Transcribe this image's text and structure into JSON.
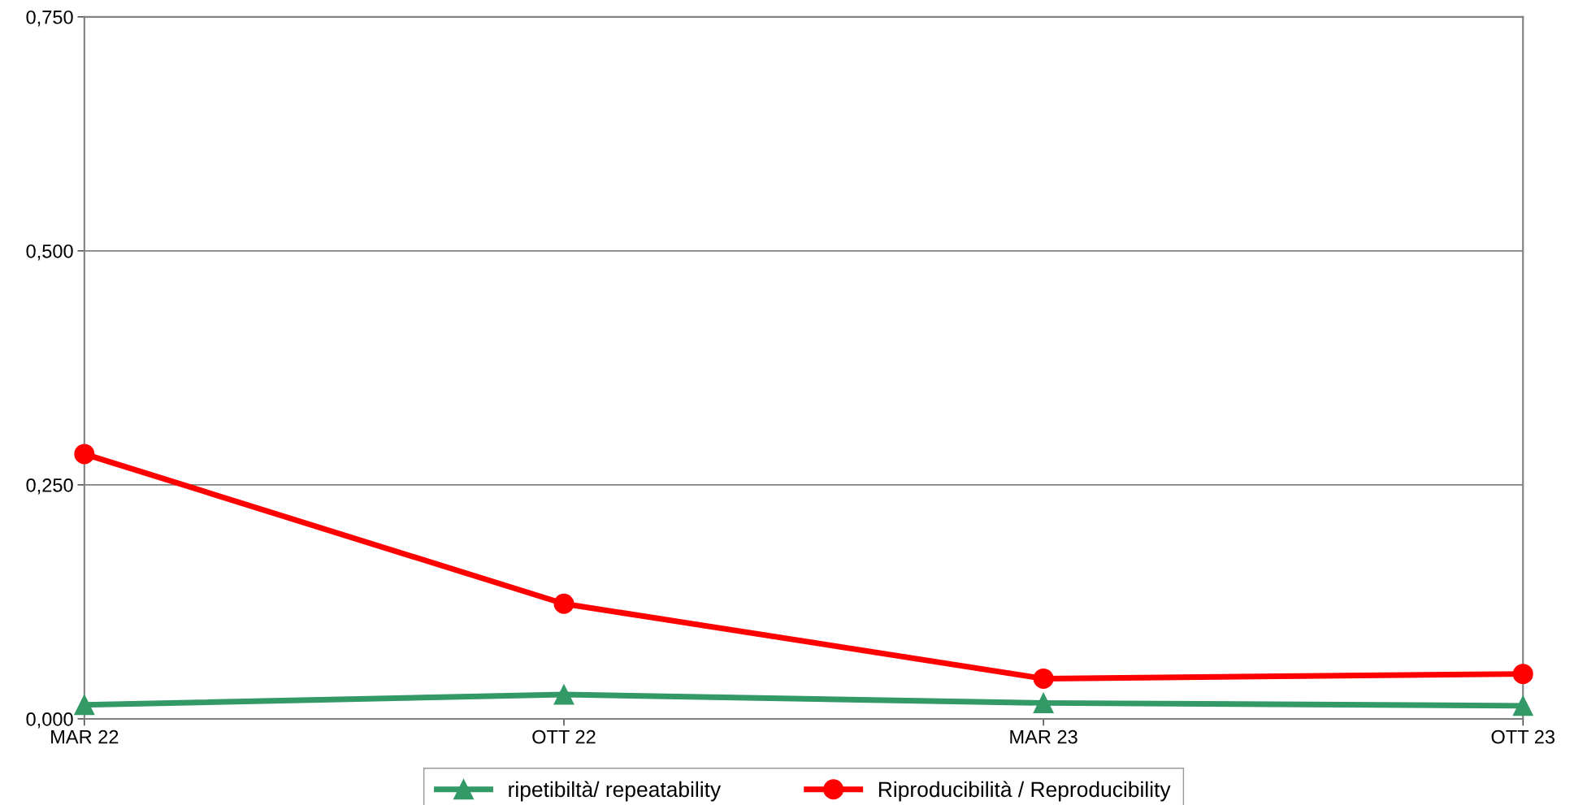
{
  "chart_data": {
    "type": "line",
    "categories": [
      "MAR 22",
      "OTT 22",
      "MAR 23",
      "OTT 23"
    ],
    "series": [
      {
        "name": "ripetibiltà/ repeatability",
        "color": "#339966",
        "marker": "triangle",
        "values": [
          0.015,
          0.026,
          0.017,
          0.014
        ]
      },
      {
        "name": "Riproducibilità / Reproducibility",
        "color": "#ff0000",
        "marker": "circle",
        "values": [
          0.283,
          0.123,
          0.043,
          0.048
        ]
      }
    ],
    "ylim": [
      0,
      0.75
    ],
    "yticks": [
      {
        "value": 0,
        "label": "0,000"
      },
      {
        "value": 0.25,
        "label": "0,250"
      },
      {
        "value": 0.5,
        "label": "0,500"
      },
      {
        "value": 0.75,
        "label": "0,750"
      }
    ],
    "grid": "y",
    "legend": "bottom",
    "line_style": "solid"
  }
}
